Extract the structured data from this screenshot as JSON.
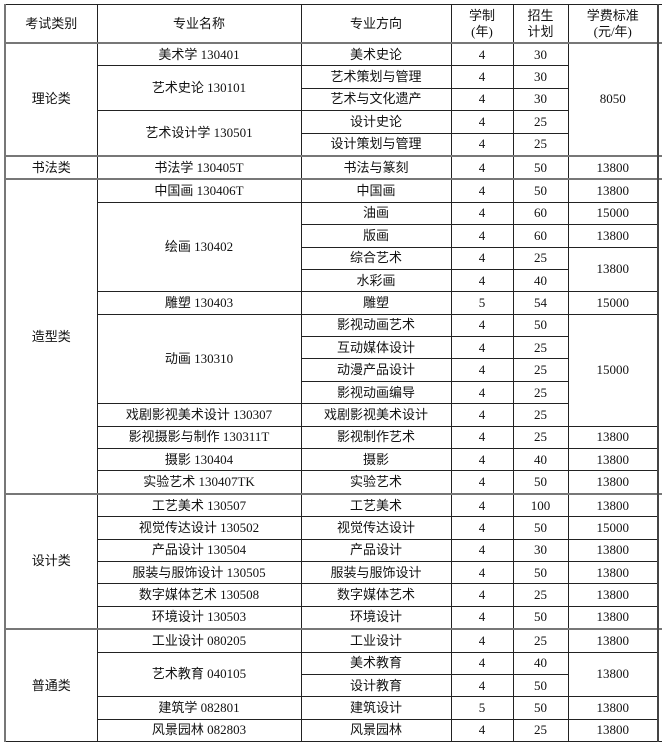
{
  "headers": {
    "category": "考试类别",
    "major": "专业名称",
    "direction": "专业方向",
    "years": "学制\n(年)",
    "plan": "招生\n计划",
    "fee": "学费标准\n(元/年)"
  },
  "rows": [
    {
      "category": "理论类",
      "major": "美术学 130401",
      "direction": "美术史论",
      "years": "4",
      "plan": "30",
      "fee": "8050"
    },
    {
      "category": null,
      "major": "艺术史论 130101",
      "direction": "艺术策划与管理",
      "years": "4",
      "plan": "30",
      "fee": null
    },
    {
      "category": null,
      "major": null,
      "direction": "艺术与文化遗产",
      "years": "4",
      "plan": "30",
      "fee": null
    },
    {
      "category": null,
      "major": "艺术设计学 130501",
      "direction": "设计史论",
      "years": "4",
      "plan": "25",
      "fee": null
    },
    {
      "category": null,
      "major": null,
      "direction": "设计策划与管理",
      "years": "4",
      "plan": "25",
      "fee": null
    },
    {
      "category": "书法类",
      "major": "书法学 130405T",
      "direction": "书法与篆刻",
      "years": "4",
      "plan": "50",
      "fee": "13800"
    },
    {
      "category": "造型类",
      "major": "中国画 130406T",
      "direction": "中国画",
      "years": "4",
      "plan": "50",
      "fee": "13800"
    },
    {
      "category": null,
      "major": "绘画 130402",
      "direction": "油画",
      "years": "4",
      "plan": "60",
      "fee": "15000"
    },
    {
      "category": null,
      "major": null,
      "direction": "版画",
      "years": "4",
      "plan": "60",
      "fee": "13800"
    },
    {
      "category": null,
      "major": null,
      "direction": "综合艺术",
      "years": "4",
      "plan": "25",
      "fee": "13800"
    },
    {
      "category": null,
      "major": null,
      "direction": "水彩画",
      "years": "4",
      "plan": "40",
      "fee": null
    },
    {
      "category": null,
      "major": "雕塑 130403",
      "direction": "雕塑",
      "years": "5",
      "plan": "54",
      "fee": "15000"
    },
    {
      "category": null,
      "major": "动画 130310",
      "direction": "影视动画艺术",
      "years": "4",
      "plan": "50",
      "fee": "15000"
    },
    {
      "category": null,
      "major": null,
      "direction": "互动媒体设计",
      "years": "4",
      "plan": "25",
      "fee": null
    },
    {
      "category": null,
      "major": null,
      "direction": "动漫产品设计",
      "years": "4",
      "plan": "25",
      "fee": null
    },
    {
      "category": null,
      "major": null,
      "direction": "影视动画编导",
      "years": "4",
      "plan": "25",
      "fee": null
    },
    {
      "category": null,
      "major": "戏剧影视美术设计 130307",
      "direction": "戏剧影视美术设计",
      "years": "4",
      "plan": "25",
      "fee": null
    },
    {
      "category": null,
      "major": "影视摄影与制作 130311T",
      "direction": "影视制作艺术",
      "years": "4",
      "plan": "25",
      "fee": "13800"
    },
    {
      "category": null,
      "major": "摄影 130404",
      "direction": "摄影",
      "years": "4",
      "plan": "40",
      "fee": "13800"
    },
    {
      "category": null,
      "major": "实验艺术 130407TK",
      "direction": "实验艺术",
      "years": "4",
      "plan": "50",
      "fee": "13800"
    },
    {
      "category": "设计类",
      "major": "工艺美术 130507",
      "direction": "工艺美术",
      "years": "4",
      "plan": "100",
      "fee": "13800"
    },
    {
      "category": null,
      "major": "视觉传达设计 130502",
      "direction": "视觉传达设计",
      "years": "4",
      "plan": "50",
      "fee": "15000"
    },
    {
      "category": null,
      "major": "产品设计 130504",
      "direction": "产品设计",
      "years": "4",
      "plan": "30",
      "fee": "13800"
    },
    {
      "category": null,
      "major": "服装与服饰设计 130505",
      "direction": "服装与服饰设计",
      "years": "4",
      "plan": "50",
      "fee": "13800"
    },
    {
      "category": null,
      "major": "数字媒体艺术 130508",
      "direction": "数字媒体艺术",
      "years": "4",
      "plan": "25",
      "fee": "13800"
    },
    {
      "category": null,
      "major": "环境设计 130503",
      "direction": "环境设计",
      "years": "4",
      "plan": "50",
      "fee": "13800"
    },
    {
      "category": "普通类",
      "major": "工业设计 080205",
      "direction": "工业设计",
      "years": "4",
      "plan": "25",
      "fee": "13800"
    },
    {
      "category": null,
      "major": "艺术教育 040105",
      "direction": "美术教育",
      "years": "4",
      "plan": "40",
      "fee": "13800"
    },
    {
      "category": null,
      "major": null,
      "direction": "设计教育",
      "years": "4",
      "plan": "50",
      "fee": null
    },
    {
      "category": null,
      "major": "建筑学 082801",
      "direction": "建筑设计",
      "years": "5",
      "plan": "50",
      "fee": "13800"
    },
    {
      "category": null,
      "major": "风景园林 082803",
      "direction": "风景园林",
      "years": "4",
      "plan": "25",
      "fee": "13800"
    }
  ]
}
